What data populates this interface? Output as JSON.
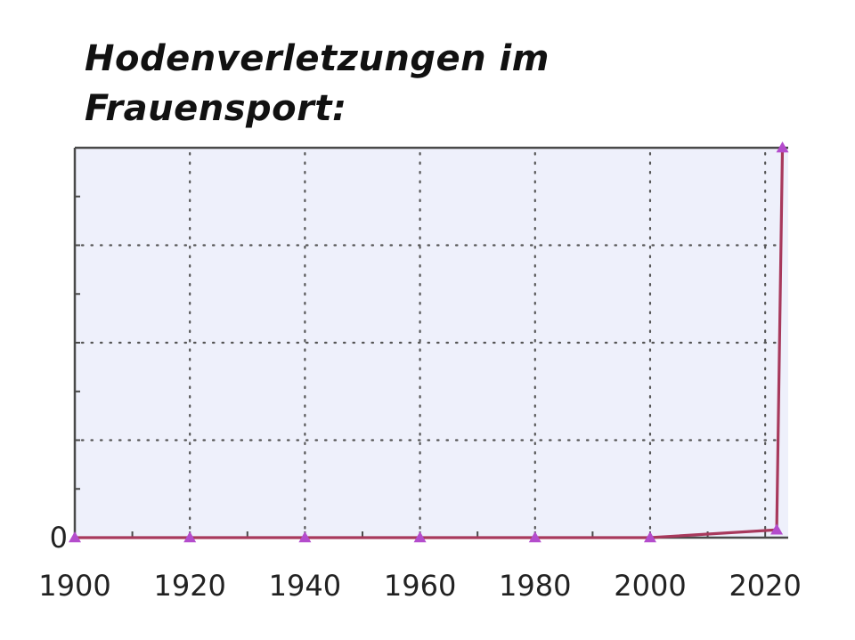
{
  "title_lines": [
    "Hodenverletzungen im",
    "Frauensport:"
  ],
  "chart_data": {
    "type": "line",
    "title": "Hodenverletzungen im Frauensport:",
    "xlabel": "",
    "ylabel": "",
    "x_ticks": [
      "1900",
      "1920",
      "1940",
      "1960",
      "1980",
      "2000",
      "2020"
    ],
    "y_ticks": [
      "0"
    ],
    "xlim": [
      1900,
      2024
    ],
    "ylim": [
      0,
      100
    ],
    "grid": true,
    "series": [
      {
        "x": [
          1900,
          1920,
          1940,
          1960,
          1980,
          2000,
          2022,
          2023
        ],
        "y": [
          0,
          0,
          0,
          0,
          0,
          0,
          2,
          100
        ]
      }
    ],
    "colors": {
      "line": "#a8395c",
      "marker": "#b44ccc",
      "plot_bg": "#eef0fb",
      "axis": "#4a4a4a",
      "grid": "#555555"
    }
  }
}
